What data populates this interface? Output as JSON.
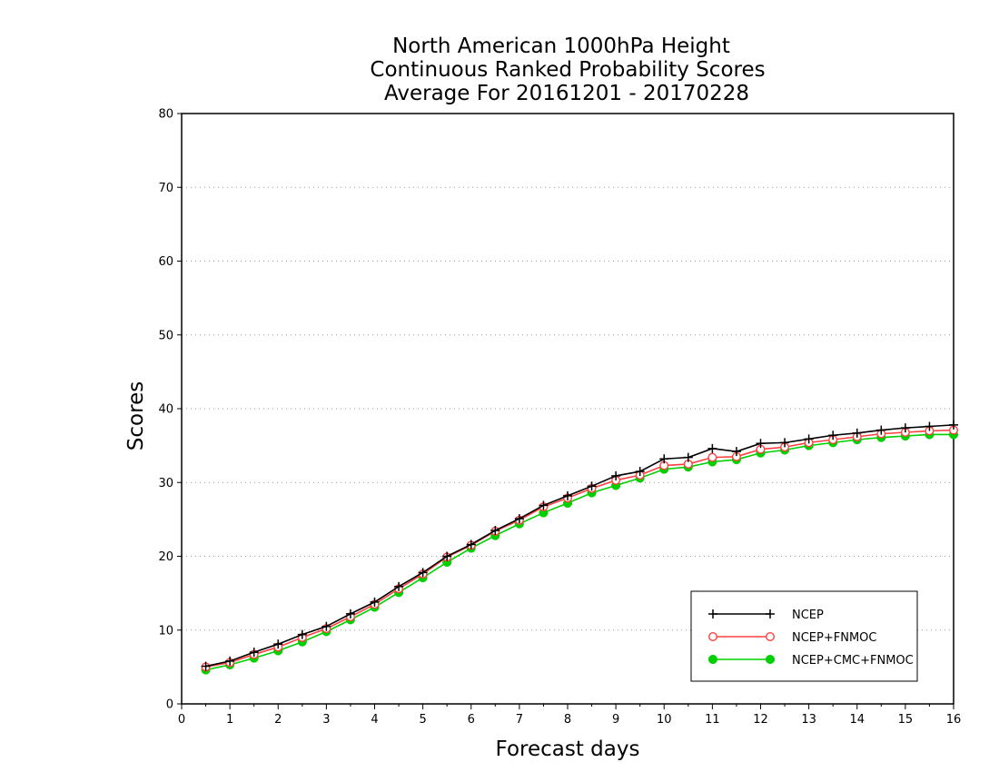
{
  "chart_data": {
    "type": "line",
    "title": [
      "North American 1000hPa Height",
      "Continuous Ranked Probability Scores",
      "Average For 20161201 - 20170228"
    ],
    "xlabel": "Forecast days",
    "ylabel": "Scores",
    "xlim": [
      0,
      16
    ],
    "ylim": [
      0,
      80
    ],
    "xticks": [
      "0",
      "1",
      "2",
      "3",
      "4",
      "5",
      "6",
      "7",
      "8",
      "9",
      "10",
      "11",
      "12",
      "13",
      "14",
      "15",
      "16"
    ],
    "yticks": [
      "0",
      "10",
      "20",
      "30",
      "40",
      "50",
      "60",
      "70",
      "80"
    ],
    "grid": "horizontal dotted",
    "legend_position": "bottom-right",
    "x": [
      0.5,
      1,
      1.5,
      2,
      2.5,
      3,
      3.5,
      4,
      4.5,
      5,
      5.5,
      6,
      6.5,
      7,
      7.5,
      8,
      8.5,
      9,
      9.5,
      10,
      10.5,
      11,
      11.5,
      12,
      12.5,
      13,
      13.5,
      14,
      14.5,
      15,
      15.5,
      16
    ],
    "series": [
      {
        "name": "NCEP",
        "color": "#000000",
        "marker": "plus",
        "values": [
          5.1,
          5.8,
          7.0,
          8.1,
          9.4,
          10.5,
          12.2,
          13.8,
          15.9,
          17.8,
          20.0,
          21.6,
          23.5,
          25.1,
          26.9,
          28.2,
          29.5,
          30.9,
          31.5,
          33.2,
          33.4,
          34.6,
          34.2,
          35.3,
          35.4,
          35.9,
          36.4,
          36.7,
          37.1,
          37.4,
          37.6,
          37.8
        ]
      },
      {
        "name": "NCEP+FNMOC",
        "color": "#ff4040",
        "marker": "open-circle",
        "values": [
          5.0,
          5.6,
          6.7,
          7.7,
          9.0,
          10.2,
          11.8,
          13.5,
          15.6,
          17.6,
          19.9,
          21.5,
          23.4,
          24.9,
          26.7,
          27.9,
          29.2,
          30.3,
          31.0,
          32.3,
          32.5,
          33.4,
          33.5,
          34.5,
          34.8,
          35.4,
          35.8,
          36.2,
          36.6,
          36.8,
          37.0,
          37.1
        ]
      },
      {
        "name": "NCEP+CMC+FNMOC",
        "color": "#00d000",
        "marker": "filled-circle",
        "values": [
          4.6,
          5.3,
          6.2,
          7.2,
          8.4,
          9.8,
          11.4,
          13.1,
          15.1,
          17.1,
          19.2,
          21.1,
          22.8,
          24.4,
          25.9,
          27.2,
          28.6,
          29.6,
          30.6,
          31.8,
          32.1,
          32.8,
          33.1,
          34.0,
          34.4,
          35.0,
          35.4,
          35.8,
          36.1,
          36.3,
          36.5,
          36.5
        ]
      }
    ]
  }
}
